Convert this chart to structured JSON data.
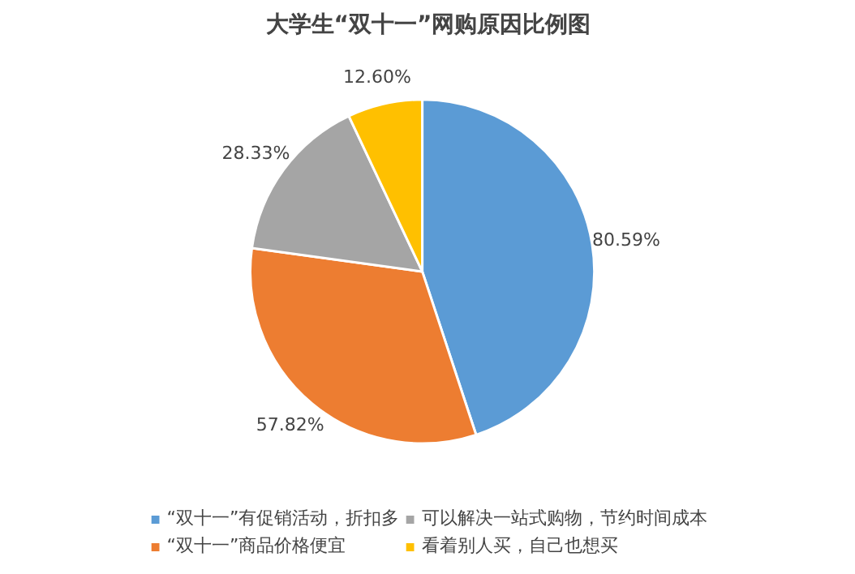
{
  "chart_data": {
    "type": "pie",
    "title": "大学生“双十一”网购原因比例图",
    "categories": [
      "“双十一”有促销活动，折扣多",
      "“双十一”商品价格便宜",
      "可以解决一站式购物，节约时间成本",
      "看着别人买，自己也想买"
    ],
    "values": [
      80.59,
      57.82,
      28.33,
      12.6
    ],
    "value_labels": [
      "80.59%",
      "57.82%",
      "28.33%",
      "12.60%"
    ],
    "colors": [
      "#5b9bd5",
      "#ed7d31",
      "#a5a5a5",
      "#ffc000"
    ],
    "legend": "bottom"
  }
}
